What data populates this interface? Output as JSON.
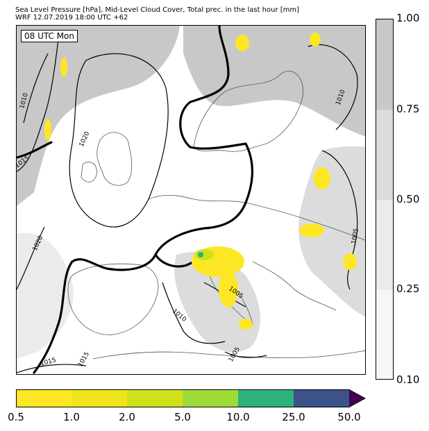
{
  "header": {
    "line1": "Sea Level Pressure [hPa], Mid-Level Cloud Cover, Total prec. in the last hour [mm]",
    "line2": "WRF 12.07.2019 18:00 UTC +62"
  },
  "map": {
    "time_label": "08 UTC Mon",
    "isobar_labels": [
      "1010",
      "1010",
      "1015",
      "1020",
      "1020",
      "1005",
      "1005",
      "1005",
      "1010",
      "1015",
      "1015"
    ]
  },
  "cloud_colorbar": {
    "ticks": [
      "1.00",
      "0.75",
      "0.50",
      "0.25",
      "0.10"
    ],
    "colors": [
      "#c8c8c8",
      "#dcdcdc",
      "#ebebeb",
      "#f6f6f6"
    ]
  },
  "precip_colorbar": {
    "labels": [
      "0.5",
      "1.0",
      "2.0",
      "5.0",
      "10.0",
      "25.0",
      "50.0"
    ],
    "colors": [
      "#fde725",
      "#efe51c",
      "#d0e11c",
      "#a0da39",
      "#2db27d",
      "#3b528b",
      "#440154"
    ]
  },
  "colors": {
    "cloud": "#c8c8c8",
    "coast": "#555555",
    "isobar": "#000000"
  }
}
